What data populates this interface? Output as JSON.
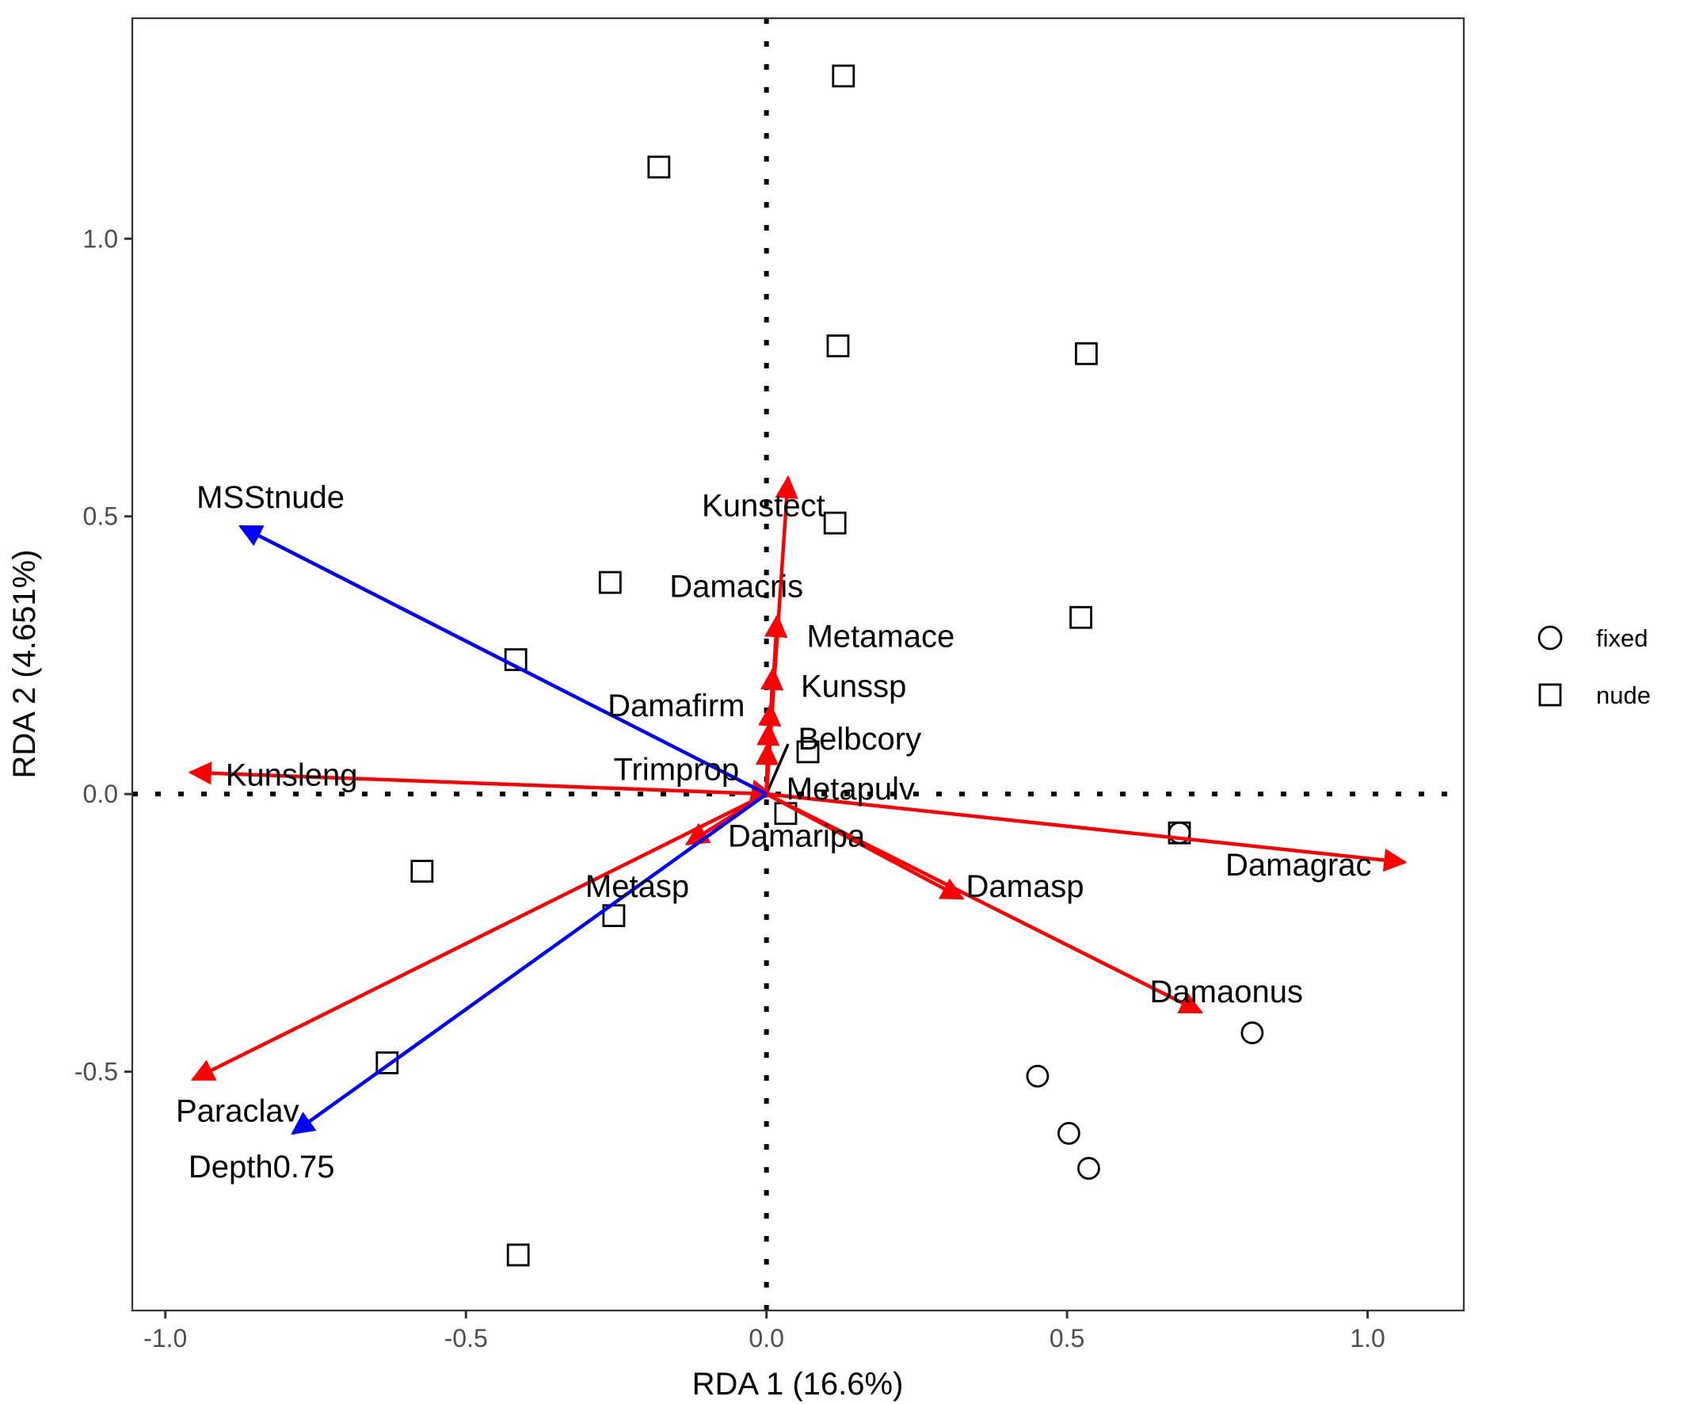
{
  "chart_data": {
    "type": "scatter",
    "title": "",
    "xlabel": "RDA 1 (16.6%)",
    "ylabel": "RDA 2 (4.651%)",
    "xlim": [
      -1.055,
      1.16
    ],
    "ylim": [
      -0.93,
      1.397
    ],
    "x_ticks": [
      -1.0,
      -0.5,
      0.0,
      0.5,
      1.0
    ],
    "x_tick_labels": [
      "-1.0",
      "-0.5",
      "0.0",
      "0.5",
      "1.0"
    ],
    "y_ticks": [
      -0.5,
      0.0,
      0.5,
      1.0
    ],
    "y_tick_labels": [
      "-0.5",
      "0.0",
      "0.5",
      "1.0"
    ],
    "grid": false,
    "reference_lines": {
      "x": 0,
      "y": 0,
      "style": "dotted"
    },
    "legend": {
      "placement": "right",
      "entries": [
        {
          "label": "fixed",
          "shape": "circle"
        },
        {
          "label": "nude",
          "shape": "square"
        }
      ]
    },
    "series": [
      {
        "name": "fixed",
        "shape": "circle",
        "points": [
          {
            "x": 0.687,
            "y": -0.07
          },
          {
            "x": 0.808,
            "y": -0.43
          },
          {
            "x": 0.451,
            "y": -0.508
          },
          {
            "x": 0.503,
            "y": -0.611
          },
          {
            "x": 0.536,
            "y": -0.674
          }
        ]
      },
      {
        "name": "nude",
        "shape": "square",
        "points": [
          {
            "x": 0.128,
            "y": 1.293
          },
          {
            "x": -0.179,
            "y": 1.129
          },
          {
            "x": 0.119,
            "y": 0.807
          },
          {
            "x": 0.532,
            "y": 0.793
          },
          {
            "x": 0.114,
            "y": 0.488
          },
          {
            "x": -0.26,
            "y": 0.381
          },
          {
            "x": 0.523,
            "y": 0.318
          },
          {
            "x": -0.417,
            "y": 0.242
          },
          {
            "x": 0.069,
            "y": 0.076
          },
          {
            "x": 0.032,
            "y": -0.035
          },
          {
            "x": 0.687,
            "y": -0.07
          },
          {
            "x": -0.573,
            "y": -0.139
          },
          {
            "x": -0.254,
            "y": -0.219
          },
          {
            "x": -0.631,
            "y": -0.484
          },
          {
            "x": -0.413,
            "y": -0.83
          }
        ]
      }
    ],
    "species_arrows": {
      "color": "#ff0000",
      "items": [
        {
          "name": "Kunstect",
          "x": 0.036,
          "y": 0.57,
          "label_x": -0.005,
          "label_y": 0.52
        },
        {
          "name": "Damacris",
          "x": 0.018,
          "y": 0.32,
          "label_x": -0.05,
          "label_y": 0.375
        },
        {
          "name": "Metamace",
          "x": 0.018,
          "y": 0.32,
          "label_x": 0.19,
          "label_y": 0.285
        },
        {
          "name": "Kunssp",
          "x": 0.011,
          "y": 0.225,
          "label_x": 0.145,
          "label_y": 0.195
        },
        {
          "name": "Damafirm",
          "x": 0.007,
          "y": 0.16,
          "label_x": -0.15,
          "label_y": 0.16
        },
        {
          "name": "Belbcory",
          "x": 0.004,
          "y": 0.125,
          "label_x": 0.155,
          "label_y": 0.1
        },
        {
          "name": "Trimprop",
          "x": 0.002,
          "y": 0.09,
          "label_x": -0.15,
          "label_y": 0.045
        },
        {
          "name": "Metapulv",
          "x": 0.009,
          "y": -0.002,
          "label_x": 0.14,
          "label_y": 0.01
        },
        {
          "name": "Kunsleng",
          "x": -0.958,
          "y": 0.039,
          "label_x": -0.79,
          "label_y": 0.035
        },
        {
          "name": "Damagrac",
          "x": 1.062,
          "y": -0.123,
          "label_x": 0.885,
          "label_y": -0.127
        },
        {
          "name": "Damasp",
          "x": 0.326,
          "y": -0.188,
          "label_x": 0.43,
          "label_y": -0.165
        },
        {
          "name": "Damaonus",
          "x": 0.723,
          "y": -0.393,
          "label_x": 0.765,
          "label_y": -0.355
        },
        {
          "name": "Damaripa",
          "x": -0.132,
          "y": -0.09,
          "label_x": 0.05,
          "label_y": -0.075
        },
        {
          "name": "Metasp",
          "x": -0.132,
          "y": -0.09,
          "label_x": -0.215,
          "label_y": -0.165
        },
        {
          "name": "Paraclav",
          "x": -0.954,
          "y": -0.514,
          "label_x": -0.88,
          "label_y": -0.57
        }
      ]
    },
    "environment_arrows": {
      "color": "#0000ff",
      "items": [
        {
          "name": "MSStnude",
          "x": -0.875,
          "y": 0.482,
          "label_x": -0.825,
          "label_y": 0.535
        },
        {
          "name": "Depth0.75",
          "x": -0.788,
          "y": -0.611,
          "label_x": -0.84,
          "label_y": -0.67
        }
      ]
    },
    "label_connectors": [
      {
        "from_x": 0.0,
        "from_y": 0.0,
        "to_x": 0.036,
        "to_y": 0.09
      }
    ]
  }
}
